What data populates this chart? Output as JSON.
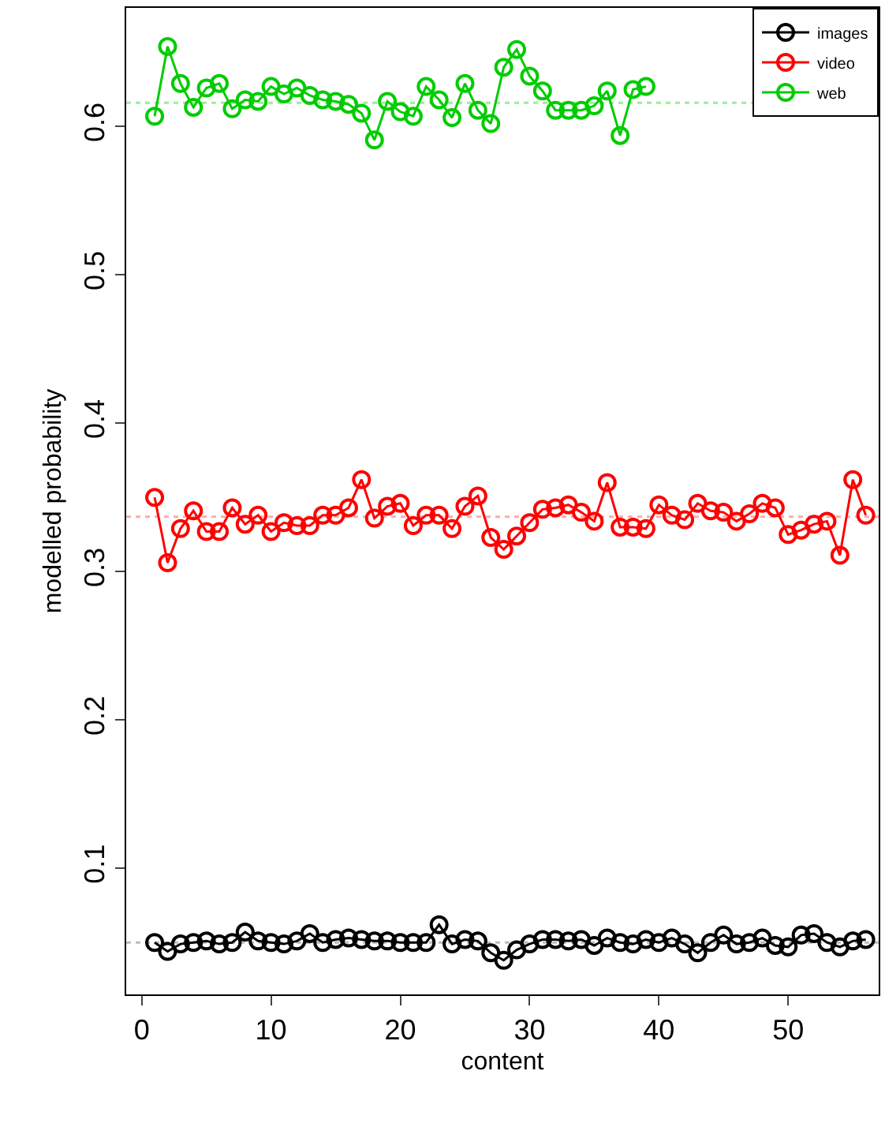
{
  "chart_data": {
    "type": "line",
    "xlabel": "content",
    "ylabel": "modelled probability",
    "x": [
      1,
      2,
      3,
      4,
      5,
      6,
      7,
      8,
      9,
      10,
      11,
      12,
      13,
      14,
      15,
      16,
      17,
      18,
      19,
      20,
      21,
      22,
      23,
      24,
      25,
      26,
      27,
      28,
      29,
      30,
      31,
      32,
      33,
      34,
      35,
      36,
      37,
      38,
      39,
      40,
      41,
      42,
      43,
      44,
      45,
      46,
      47,
      48,
      49,
      50,
      51,
      52,
      53,
      54,
      55,
      56
    ],
    "xlim": [
      -1.2,
      57
    ],
    "xticks": [
      0,
      10,
      20,
      30,
      40,
      50
    ],
    "ylim": [
      0.015,
      0.68
    ],
    "yticks": [
      0.1,
      0.2,
      0.3,
      0.4,
      0.5,
      0.6
    ],
    "marker": "circle",
    "legend": "top right",
    "grid": false,
    "series": [
      {
        "name": "images",
        "color": "#000000",
        "values": [
          0.05,
          0.044,
          0.049,
          0.05,
          0.051,
          0.049,
          0.05,
          0.057,
          0.051,
          0.05,
          0.049,
          0.051,
          0.056,
          0.05,
          0.052,
          0.053,
          0.052,
          0.051,
          0.051,
          0.05,
          0.05,
          0.05,
          0.062,
          0.049,
          0.052,
          0.051,
          0.043,
          0.038,
          0.045,
          0.049,
          0.052,
          0.052,
          0.051,
          0.052,
          0.048,
          0.053,
          0.05,
          0.049,
          0.052,
          0.05,
          0.053,
          0.049,
          0.043,
          0.05,
          0.055,
          0.049,
          0.05,
          0.053,
          0.048,
          0.047,
          0.055,
          0.056,
          0.05,
          0.047,
          0.051,
          0.052
        ]
      },
      {
        "name": "video",
        "color": "#ff0000",
        "values": [
          0.35,
          0.306,
          0.329,
          0.341,
          0.327,
          0.327,
          0.343,
          0.332,
          0.338,
          0.327,
          0.333,
          0.331,
          0.331,
          0.338,
          0.338,
          0.343,
          0.362,
          0.336,
          0.344,
          0.346,
          0.331,
          0.338,
          0.338,
          0.329,
          0.344,
          0.351,
          0.323,
          0.315,
          0.324,
          0.333,
          0.342,
          0.343,
          0.345,
          0.34,
          0.334,
          0.36,
          0.33,
          0.33,
          0.329,
          0.345,
          0.338,
          0.335,
          0.346,
          0.341,
          0.34,
          0.334,
          0.339,
          0.346,
          0.343,
          0.325,
          0.328,
          0.332,
          0.334,
          0.311,
          0.362,
          0.338
        ]
      },
      {
        "name": "web",
        "color": "#00cc00",
        "values": [
          0.607,
          0.654,
          0.629,
          0.613,
          0.626,
          0.629,
          0.612,
          0.618,
          0.617,
          0.627,
          0.622,
          0.626,
          0.621,
          0.618,
          0.617,
          0.615,
          0.609,
          0.591,
          0.617,
          0.61,
          0.607,
          0.627,
          0.618,
          0.606,
          0.629,
          0.611,
          0.602,
          0.64,
          0.652,
          0.634,
          0.624,
          0.611,
          0.611,
          0.611,
          0.614,
          0.624,
          0.594,
          0.625,
          0.627,
          null,
          null,
          null,
          null,
          null,
          null,
          null,
          null,
          null,
          null,
          null,
          null,
          null,
          null,
          null,
          null,
          null
        ]
      }
    ],
    "ref_lines": [
      {
        "axis": "y",
        "value": 0.05,
        "color": "#bbbbbb",
        "line_style": "dotted"
      },
      {
        "axis": "y",
        "value": 0.337,
        "color": "#ffaaaa",
        "line_style": "dotted"
      },
      {
        "axis": "y",
        "value": 0.616,
        "color": "#99ee99",
        "line_style": "dotted"
      }
    ]
  }
}
